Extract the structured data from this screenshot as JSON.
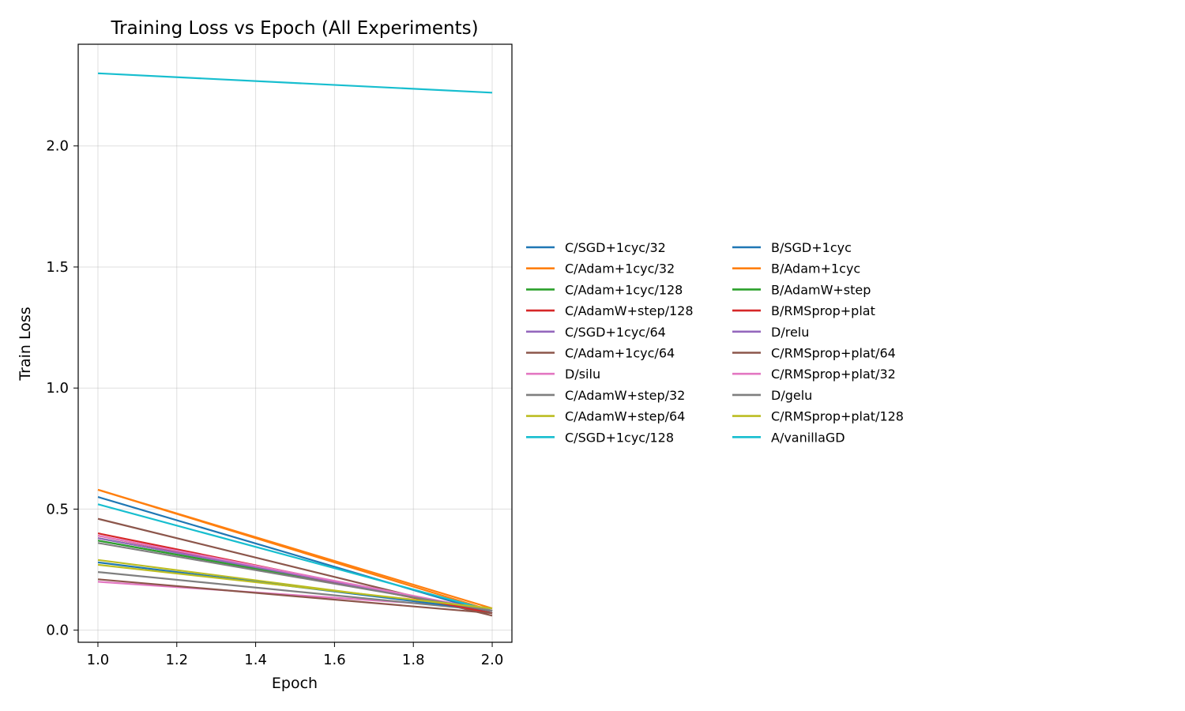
{
  "chart_data": {
    "type": "line",
    "title": "Training Loss vs Epoch (All Experiments)",
    "xlabel": "Epoch",
    "ylabel": "Train Loss",
    "x": [
      1.0,
      2.0
    ],
    "xlim": [
      0.95,
      2.05
    ],
    "ylim": [
      -0.05,
      2.42
    ],
    "xticks": [
      "1.0",
      "1.2",
      "1.4",
      "1.6",
      "1.8",
      "2.0"
    ],
    "yticks": [
      "0.0",
      "0.5",
      "1.0",
      "1.5",
      "2.0"
    ],
    "grid": true,
    "legend_position": "right",
    "legend_columns": 2,
    "series": [
      {
        "name": "C/SGD+1cyc/32",
        "color": "#1f77b4",
        "values": [
          0.55,
          0.07
        ]
      },
      {
        "name": "C/Adam+1cyc/32",
        "color": "#ff7f0e",
        "values": [
          0.58,
          0.08
        ]
      },
      {
        "name": "C/Adam+1cyc/128",
        "color": "#2ca02c",
        "values": [
          0.38,
          0.08
        ]
      },
      {
        "name": "C/AdamW+step/128",
        "color": "#d62728",
        "values": [
          0.4,
          0.07
        ]
      },
      {
        "name": "C/SGD+1cyc/64",
        "color": "#9467bd",
        "values": [
          0.37,
          0.08
        ]
      },
      {
        "name": "C/Adam+1cyc/64",
        "color": "#8c564b",
        "values": [
          0.46,
          0.06
        ]
      },
      {
        "name": "D/silu",
        "color": "#e377c2",
        "values": [
          0.2,
          0.09
        ]
      },
      {
        "name": "C/AdamW+step/32",
        "color": "#7f7f7f",
        "values": [
          0.24,
          0.08
        ]
      },
      {
        "name": "C/AdamW+step/64",
        "color": "#bcbd22",
        "values": [
          0.29,
          0.08
        ]
      },
      {
        "name": "C/SGD+1cyc/128",
        "color": "#17becf",
        "values": [
          0.52,
          0.08
        ]
      },
      {
        "name": "B/SGD+1cyc",
        "color": "#1f77b4",
        "values": [
          0.28,
          0.08
        ]
      },
      {
        "name": "B/Adam+1cyc",
        "color": "#ff7f0e",
        "values": [
          0.58,
          0.09
        ]
      },
      {
        "name": "B/AdamW+step",
        "color": "#2ca02c",
        "values": [
          0.37,
          0.08
        ]
      },
      {
        "name": "B/RMSprop+plat",
        "color": "#d62728",
        "values": [
          0.39,
          0.07
        ]
      },
      {
        "name": "D/relu",
        "color": "#9467bd",
        "values": [
          0.38,
          0.08
        ]
      },
      {
        "name": "C/RMSprop+plat/64",
        "color": "#8c564b",
        "values": [
          0.21,
          0.07
        ]
      },
      {
        "name": "C/RMSprop+plat/32",
        "color": "#e377c2",
        "values": [
          0.39,
          0.08
        ]
      },
      {
        "name": "D/gelu",
        "color": "#7f7f7f",
        "values": [
          0.36,
          0.08
        ]
      },
      {
        "name": "C/RMSprop+plat/128",
        "color": "#bcbd22",
        "values": [
          0.27,
          0.09
        ]
      },
      {
        "name": "A/vanillaGD",
        "color": "#17becf",
        "values": [
          2.3,
          2.22
        ]
      }
    ]
  }
}
